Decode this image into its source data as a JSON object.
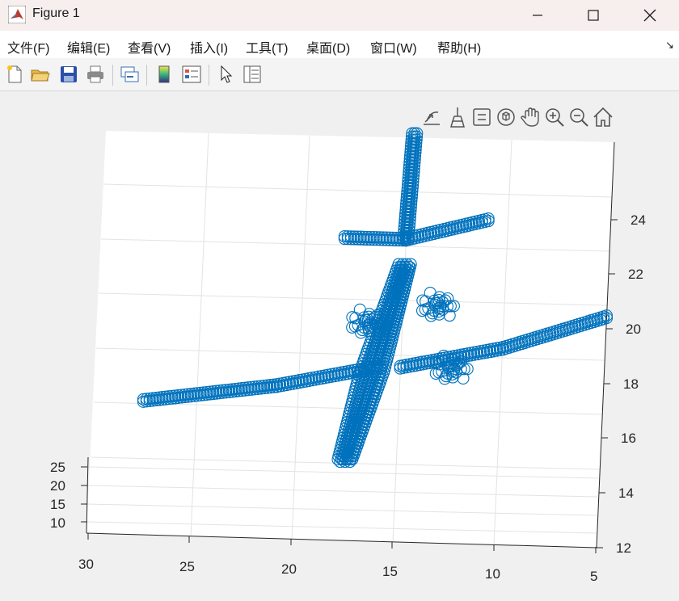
{
  "window": {
    "title": "Figure 1"
  },
  "menu": [
    "文件(F)",
    "编辑(E)",
    "查看(V)",
    "插入(I)",
    "工具(T)",
    "桌面(D)",
    "窗口(W)",
    "帮助(H)"
  ],
  "menu_dock_glyph": "↘",
  "toolbar_icons": [
    "new-figure-icon",
    "open-file-icon",
    "save-icon",
    "print-icon",
    "link-plot-icon",
    "colorbar-icon",
    "legend-icon",
    "pointer-icon",
    "property-inspector-icon"
  ],
  "axes_toolbar_icons": [
    "export-icon",
    "brush-icon",
    "data-tips-icon",
    "rotate-3d-icon",
    "pan-icon",
    "zoom-in-icon",
    "zoom-out-icon",
    "home-icon"
  ],
  "colors": {
    "marker": "#0072BD",
    "title_bar": "#f7eeee",
    "figure_bg": "#f0f0f0"
  },
  "chart_data": {
    "type": "scatter",
    "marker": "circle",
    "x_ticks": [
      "30",
      "25",
      "20",
      "15",
      "10",
      "5"
    ],
    "y_ticks": [
      "10",
      "15",
      "20",
      "25"
    ],
    "z_ticks": [
      "12",
      "14",
      "16",
      "18",
      "20",
      "22",
      "24"
    ],
    "xlim": [
      5,
      30
    ],
    "ylim": [
      7,
      27
    ],
    "zlim": [
      12,
      25
    ],
    "grid": true,
    "series": [
      {
        "part": "left-wing",
        "points": [
          [
            27.5,
            17,
            16.3
          ],
          [
            21,
            17,
            16.9
          ],
          [
            16,
            17,
            17.6
          ]
        ]
      },
      {
        "part": "right-wing",
        "points": [
          [
            15,
            17,
            17.6
          ],
          [
            10,
            17,
            18.3
          ],
          [
            5,
            17,
            19.4
          ]
        ]
      },
      {
        "part": "left-tailplane",
        "points": [
          [
            18,
            17,
            21.7
          ],
          [
            15,
            17,
            21.7
          ]
        ]
      },
      {
        "part": "right-tailplane",
        "points": [
          [
            15,
            17,
            21.7
          ],
          [
            11,
            17,
            22.4
          ]
        ]
      },
      {
        "part": "fin",
        "points": [
          [
            15,
            17,
            21.7
          ],
          [
            14.8,
            17,
            25.1
          ]
        ]
      },
      {
        "part": "fuselage",
        "points": [
          [
            17.5,
            17,
            14.6
          ],
          [
            15,
            17,
            20.9
          ]
        ]
      }
    ]
  }
}
